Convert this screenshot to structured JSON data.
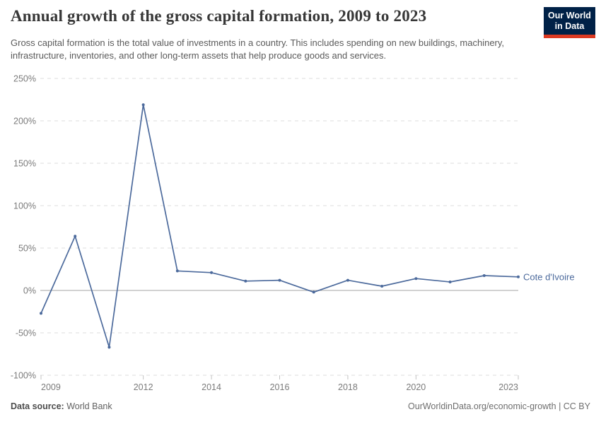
{
  "header": {
    "title": "Annual growth of the gross capital formation, 2009 to 2023",
    "subtitle": "Gross capital formation is the total value of investments in a country. This includes spending on new buildings, machinery, infrastructure, inventories, and other long-term assets that help produce goods and services.",
    "logo": {
      "line1": "Our World",
      "line2": "in Data",
      "background": "#002147",
      "accent": "#dc3a22"
    }
  },
  "chart_data": {
    "type": "line",
    "title": "Annual growth of the gross capital formation, 2009 to 2023",
    "x": [
      2009,
      2010,
      2011,
      2012,
      2013,
      2014,
      2015,
      2016,
      2017,
      2018,
      2019,
      2020,
      2021,
      2022,
      2023
    ],
    "series": [
      {
        "name": "Cote d'Ivoire",
        "values": [
          -27,
          64,
          -67,
          219,
          23,
          21,
          11,
          12,
          -2,
          12,
          5,
          14,
          10,
          17.5,
          16
        ],
        "color": "#4C6A9C"
      }
    ],
    "end_label": "Cote d'Ivoire",
    "xlabel": "",
    "ylabel": "",
    "xlim": [
      2009,
      2023
    ],
    "ylim": [
      -100,
      250
    ],
    "xticks": [
      2009,
      2012,
      2014,
      2016,
      2018,
      2020,
      2023
    ],
    "yticks": [
      250,
      200,
      150,
      100,
      50,
      0,
      -50,
      -100
    ],
    "ytick_suffix": "%",
    "grid": "horizontal-dashed",
    "zero_line": true,
    "legend_position": "end-of-line"
  },
  "footer": {
    "datasource_label": "Data source:",
    "datasource_value": "World Bank",
    "right_text": "OurWorldinData.org/economic-growth | CC BY"
  },
  "colors": {
    "line": "#4C6A9C",
    "grid": "#dcdcdc",
    "zero_line": "#a6a6a6",
    "tick": "#c3c3c3",
    "axis_text": "#7b7b7b",
    "title_text": "#373737",
    "subtitle_text": "#5a5a5a"
  }
}
